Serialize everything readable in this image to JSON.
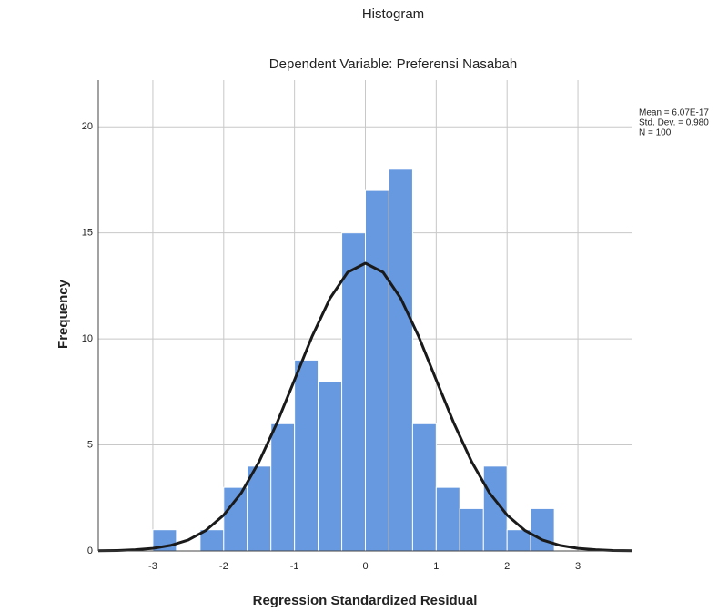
{
  "chart_data": {
    "type": "histogram",
    "title": "Histogram",
    "subtitle": "Dependent Variable: Preferensi Nasabah",
    "x_label": "Regression Standardized Residual",
    "y_label": "Frequency",
    "stats": [
      "Mean = 6.07E-17",
      "Std. Dev. = 0.980",
      "N = 100"
    ],
    "bins": [
      -3,
      -2.667,
      -2.333,
      -2,
      -1.667,
      -1.333,
      -1,
      -0.667,
      -0.333,
      0,
      0.333,
      0.667,
      1,
      1.333,
      1.667,
      2,
      2.333,
      2.667
    ],
    "counts": [
      1,
      0,
      1,
      3,
      4,
      6,
      9,
      8,
      15,
      17,
      18,
      6,
      3,
      2,
      4,
      1,
      2
    ],
    "color": "#6699e0",
    "curve": {
      "color": "#1a1a1a",
      "x": [
        -3.77,
        -3.5,
        -3.25,
        -3,
        -2.75,
        -2.5,
        -2.25,
        -2,
        -1.75,
        -1.5,
        -1.25,
        -1,
        -0.75,
        -0.5,
        -0.25,
        0,
        0.25,
        0.5,
        0.75,
        1,
        1.25,
        1.5,
        1.75,
        2,
        2.25,
        2.5,
        2.75,
        3,
        3.25,
        3.5,
        3.77
      ],
      "y": [
        0.01,
        0.023,
        0.06,
        0.125,
        0.26,
        0.52,
        0.97,
        1.69,
        2.75,
        4.21,
        6.02,
        8.06,
        10.13,
        11.91,
        13.14,
        13.57,
        13.14,
        11.91,
        10.13,
        8.06,
        6.02,
        4.21,
        2.75,
        1.69,
        0.97,
        0.52,
        0.26,
        0.125,
        0.06,
        0.023,
        0.01
      ]
    },
    "xlim": [
      -3.77,
      3.77
    ],
    "ylim": [
      0,
      22.2
    ],
    "xticks": [
      -3,
      -2,
      -1,
      0,
      1,
      2,
      3
    ],
    "yticks": [
      0,
      5,
      10,
      15,
      20
    ],
    "grid": true
  }
}
